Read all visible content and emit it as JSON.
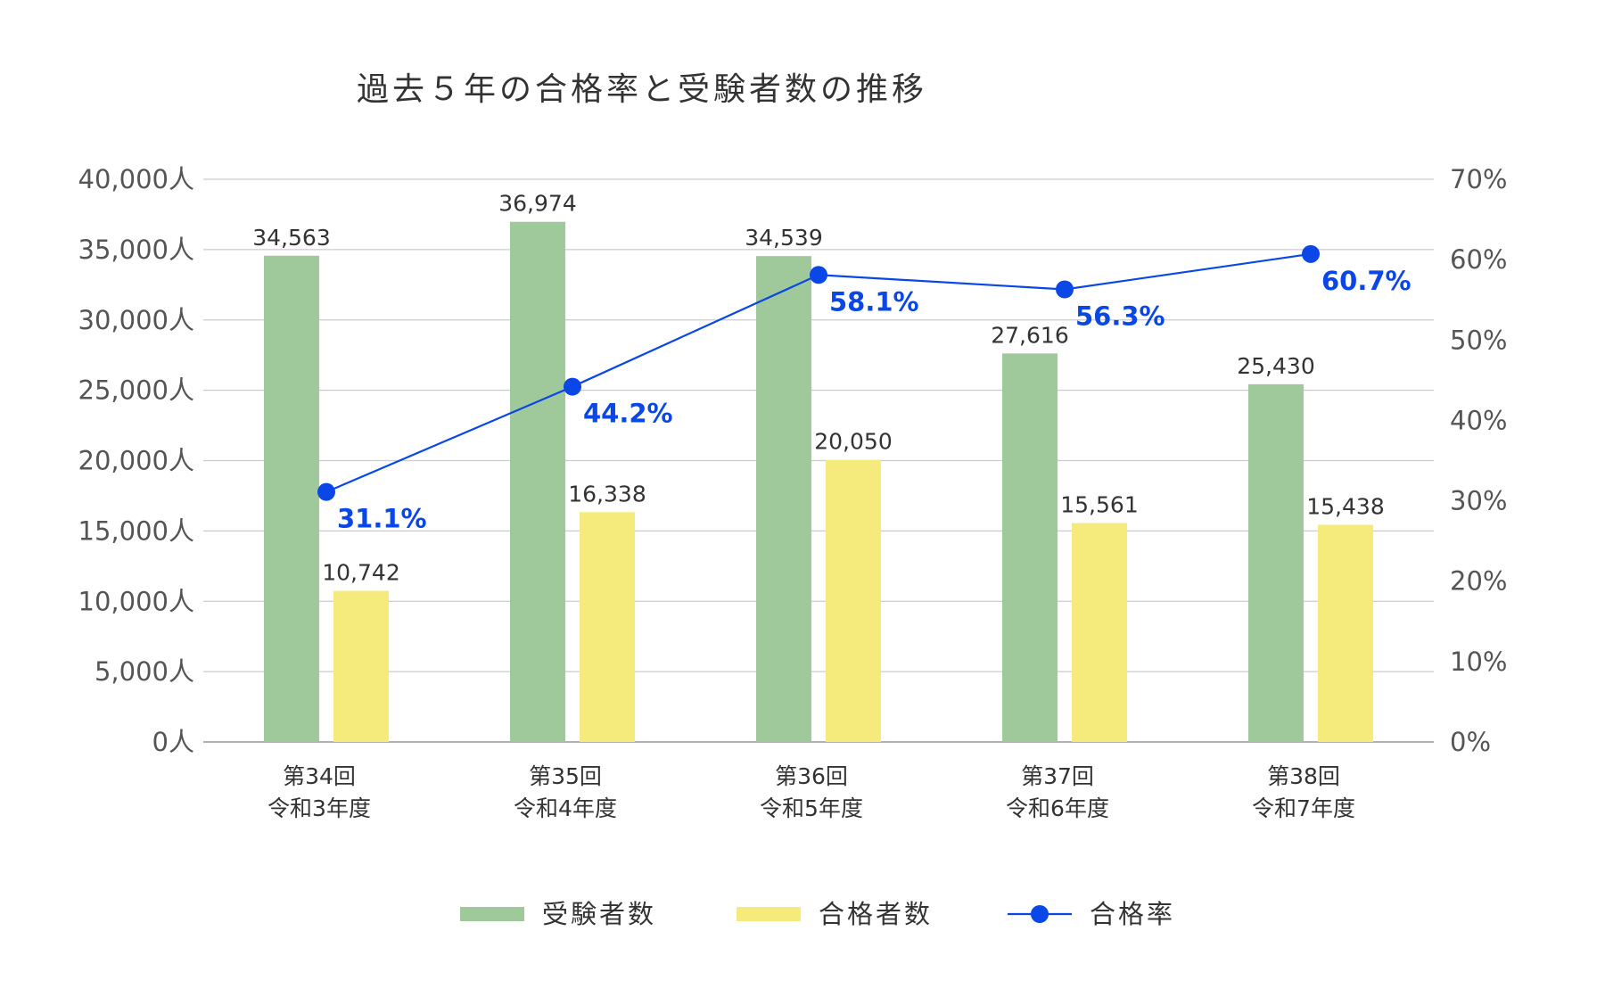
{
  "chart_data": {
    "type": "bar",
    "title": "過去５年の合格率と受験者数の推移",
    "categories": [
      [
        "第34回",
        "令和3年度"
      ],
      [
        "第35回",
        "令和4年度"
      ],
      [
        "第36回",
        "令和5年度"
      ],
      [
        "第37回",
        "令和6年度"
      ],
      [
        "第38回",
        "令和7年度"
      ]
    ],
    "series": [
      {
        "name": "受験者数",
        "type": "bar",
        "axis": "left",
        "color": "#a0c99b",
        "values": [
          34563,
          36974,
          34539,
          27616,
          25430
        ],
        "labels": [
          "34,563",
          "36,974",
          "34,539",
          "27,616",
          "25,430"
        ]
      },
      {
        "name": "合格者数",
        "type": "bar",
        "axis": "left",
        "color": "#f4eb7c",
        "values": [
          10742,
          16338,
          20050,
          15561,
          15438
        ],
        "labels": [
          "10,742",
          "16,338",
          "20,050",
          "15,561",
          "15,438"
        ]
      },
      {
        "name": "合格率",
        "type": "line",
        "axis": "right",
        "color": "#0a47e6",
        "values": [
          31.1,
          44.2,
          58.1,
          56.3,
          60.7
        ],
        "labels": [
          "31.1%",
          "44.2%",
          "58.1%",
          "56.3%",
          "60.7%"
        ]
      }
    ],
    "y_left": {
      "ylim": [
        0,
        40000
      ],
      "ticks": [
        0,
        5000,
        10000,
        15000,
        20000,
        25000,
        30000,
        35000,
        40000
      ],
      "tick_labels": [
        "0人",
        "5,000人",
        "10,000人",
        "15,000人",
        "20,000人",
        "25,000人",
        "30,000人",
        "35,000人",
        "40,000人"
      ]
    },
    "y_right": {
      "ylim": [
        0,
        70
      ],
      "ticks": [
        0,
        10,
        20,
        30,
        40,
        50,
        60,
        70
      ],
      "tick_labels": [
        "0%",
        "10%",
        "20%",
        "30%",
        "40%",
        "50%",
        "60%",
        "70%"
      ]
    },
    "grid": true,
    "legend_position": "bottom"
  }
}
